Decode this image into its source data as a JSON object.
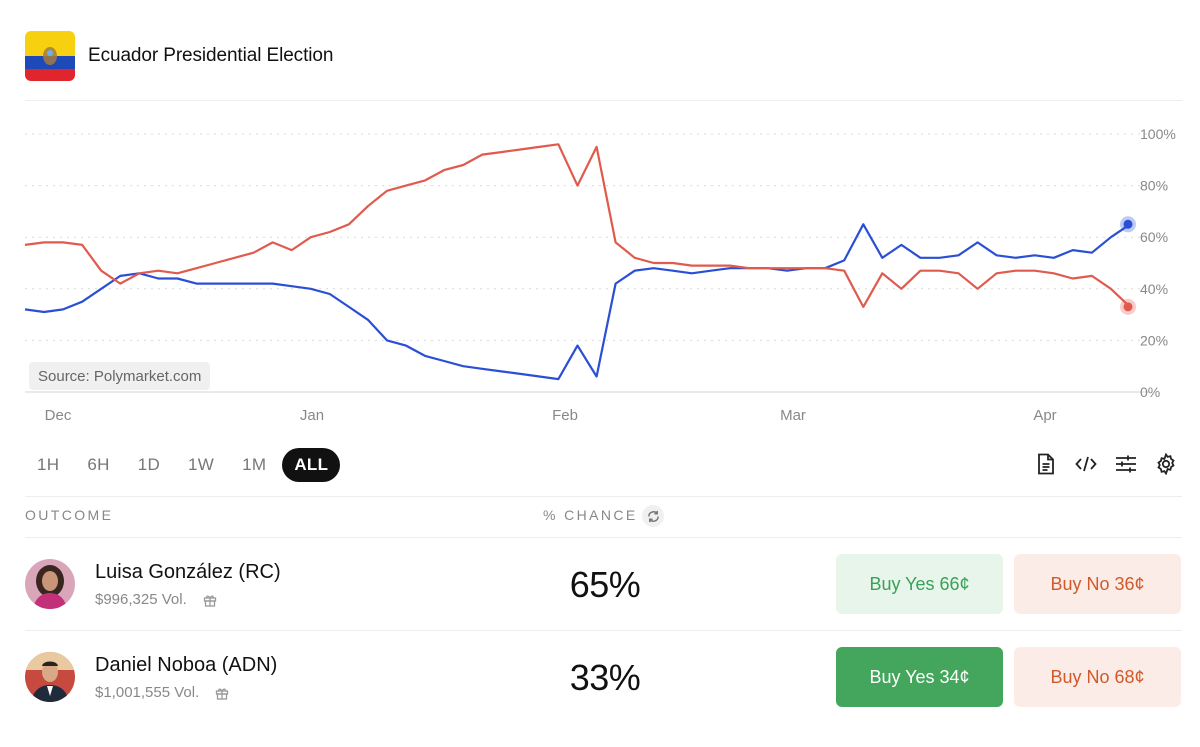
{
  "header": {
    "title": "Ecuador Presidential Election",
    "flag": "ecuador-flag"
  },
  "chart_data": {
    "type": "line",
    "source": "Source: Polymarket.com",
    "x_labels": [
      "Dec",
      "Jan",
      "Feb",
      "Mar",
      "Apr"
    ],
    "y_labels": [
      "100%",
      "80%",
      "60%",
      "40%",
      "20%",
      "0%"
    ],
    "ylim": [
      0,
      100
    ],
    "series": [
      {
        "name": "Luisa González (RC)",
        "color": "#2b4fd4",
        "values": [
          32,
          31,
          32,
          35,
          40,
          45,
          46,
          44,
          44,
          42,
          42,
          42,
          42,
          42,
          41,
          40,
          38,
          33,
          28,
          20,
          18,
          14,
          12,
          10,
          9,
          8,
          7,
          6,
          5,
          18,
          6,
          42,
          47,
          48,
          47,
          46,
          47,
          48,
          48,
          48,
          47,
          48,
          48,
          51,
          65,
          52,
          57,
          52,
          52,
          53,
          58,
          53,
          52,
          53,
          52,
          55,
          54,
          60,
          65
        ]
      },
      {
        "name": "Daniel Noboa (ADN)",
        "color": "#e05a4e",
        "values": [
          57,
          58,
          58,
          57,
          47,
          42,
          46,
          47,
          46,
          48,
          50,
          52,
          54,
          58,
          55,
          60,
          62,
          65,
          72,
          78,
          80,
          82,
          86,
          88,
          92,
          93,
          94,
          95,
          96,
          80,
          95,
          58,
          52,
          50,
          50,
          49,
          49,
          49,
          48,
          48,
          48,
          48,
          48,
          47,
          33,
          46,
          40,
          47,
          47,
          46,
          40,
          46,
          47,
          47,
          46,
          44,
          45,
          40,
          33
        ]
      }
    ]
  },
  "time_ranges": [
    "1H",
    "6H",
    "1D",
    "1W",
    "1M",
    "ALL"
  ],
  "active_range": "ALL",
  "tools": [
    "document-icon",
    "code-icon",
    "sliders-icon",
    "settings-icon"
  ],
  "table": {
    "outcome_header": "OUTCOME",
    "chance_header": "% CHANCE",
    "rows": [
      {
        "name": "Luisa González (RC)",
        "volume": "$996,325 Vol.",
        "chance": "65%",
        "buy_yes": "Buy Yes 66¢",
        "buy_no": "Buy No 36¢",
        "yes_style": "light"
      },
      {
        "name": "Daniel Noboa (ADN)",
        "volume": "$1,001,555 Vol.",
        "chance": "33%",
        "buy_yes": "Buy Yes 34¢",
        "buy_no": "Buy No 68¢",
        "yes_style": "solid"
      }
    ]
  }
}
